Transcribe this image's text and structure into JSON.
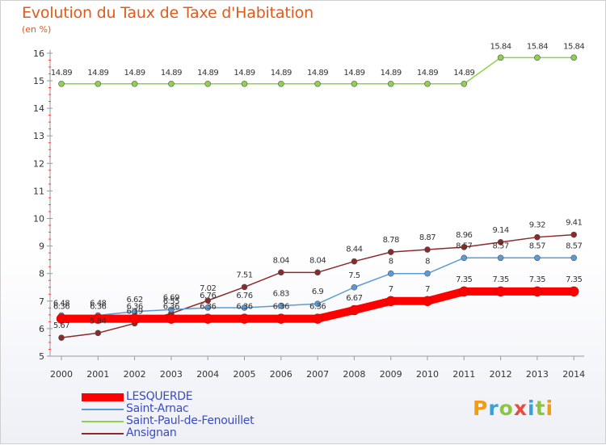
{
  "chart_data": {
    "type": "line",
    "title": "Evolution du Taux de Taxe d'Habitation",
    "ylabel": "(en %)",
    "categories": [
      "2000",
      "2001",
      "2002",
      "2003",
      "2004",
      "2005",
      "2006",
      "2007",
      "2008",
      "2009",
      "2010",
      "2011",
      "2012",
      "2013",
      "2014"
    ],
    "ylim": [
      5,
      16
    ],
    "yticks": [
      "5",
      "6",
      "7",
      "8",
      "9",
      "10",
      "11",
      "12",
      "13",
      "14",
      "15",
      "16"
    ],
    "grid": false,
    "series": [
      {
        "name": "LESQUERDE",
        "color": "#ff0000",
        "values": [
          6.36,
          6.36,
          6.36,
          6.36,
          6.36,
          6.36,
          6.36,
          6.36,
          6.67,
          7,
          7,
          7.35,
          7.35,
          7.35,
          7.35
        ],
        "labels": [
          "6.36",
          "6.36",
          "6.36",
          "6.36",
          "6.36",
          "6.36",
          "6.36",
          "6.36",
          "6.67",
          "7",
          "7",
          "7.35",
          "7.35",
          "7.35",
          "7.35"
        ]
      },
      {
        "name": "Saint-Arnac",
        "color": "#5b9bd5",
        "values": [
          6.48,
          6.48,
          6.62,
          6.69,
          6.76,
          6.76,
          6.83,
          6.9,
          7.5,
          8,
          8,
          8.57,
          8.57,
          8.57,
          8.57
        ],
        "labels": [
          "6.48",
          "6.48",
          "6.62",
          "6.69",
          "6.76",
          "6.76",
          "6.83",
          "6.9",
          "7.5",
          "8",
          "8",
          "8.57",
          "8.57",
          "8.57",
          "8.57"
        ]
      },
      {
        "name": "Saint-Paul-de-Fenouillet",
        "color": "#8fd14f",
        "values": [
          14.89,
          14.89,
          14.89,
          14.89,
          14.89,
          14.89,
          14.89,
          14.89,
          14.89,
          14.89,
          14.89,
          14.89,
          15.84,
          15.84,
          15.84
        ],
        "labels": [
          "14.89",
          "14.89",
          "14.89",
          "14.89",
          "14.89",
          "14.89",
          "14.89",
          "14.89",
          "14.89",
          "14.89",
          "14.89",
          "14.89",
          "15.84",
          "15.84",
          "15.84"
        ]
      },
      {
        "name": "Ansignan",
        "color": "#8b2a2a",
        "values": [
          5.67,
          5.84,
          6.19,
          6.55,
          7.02,
          7.51,
          8.04,
          8.04,
          8.44,
          8.78,
          8.87,
          8.96,
          9.14,
          9.32,
          9.41
        ],
        "labels": [
          "5.67",
          "5.84",
          "6.19",
          "6.55",
          "7.02",
          "7.51",
          "8.04",
          "8.04",
          "8.44",
          "8.78",
          "8.87",
          "8.96",
          "9.14",
          "9.32",
          "9.41"
        ]
      }
    ],
    "legend": [
      "LESQUERDE",
      "Saint-Arnac",
      "Saint-Paul-de-Fenouillet",
      "Ansignan"
    ],
    "legend_position": "bottom-left"
  },
  "watermark": "Proxiti"
}
